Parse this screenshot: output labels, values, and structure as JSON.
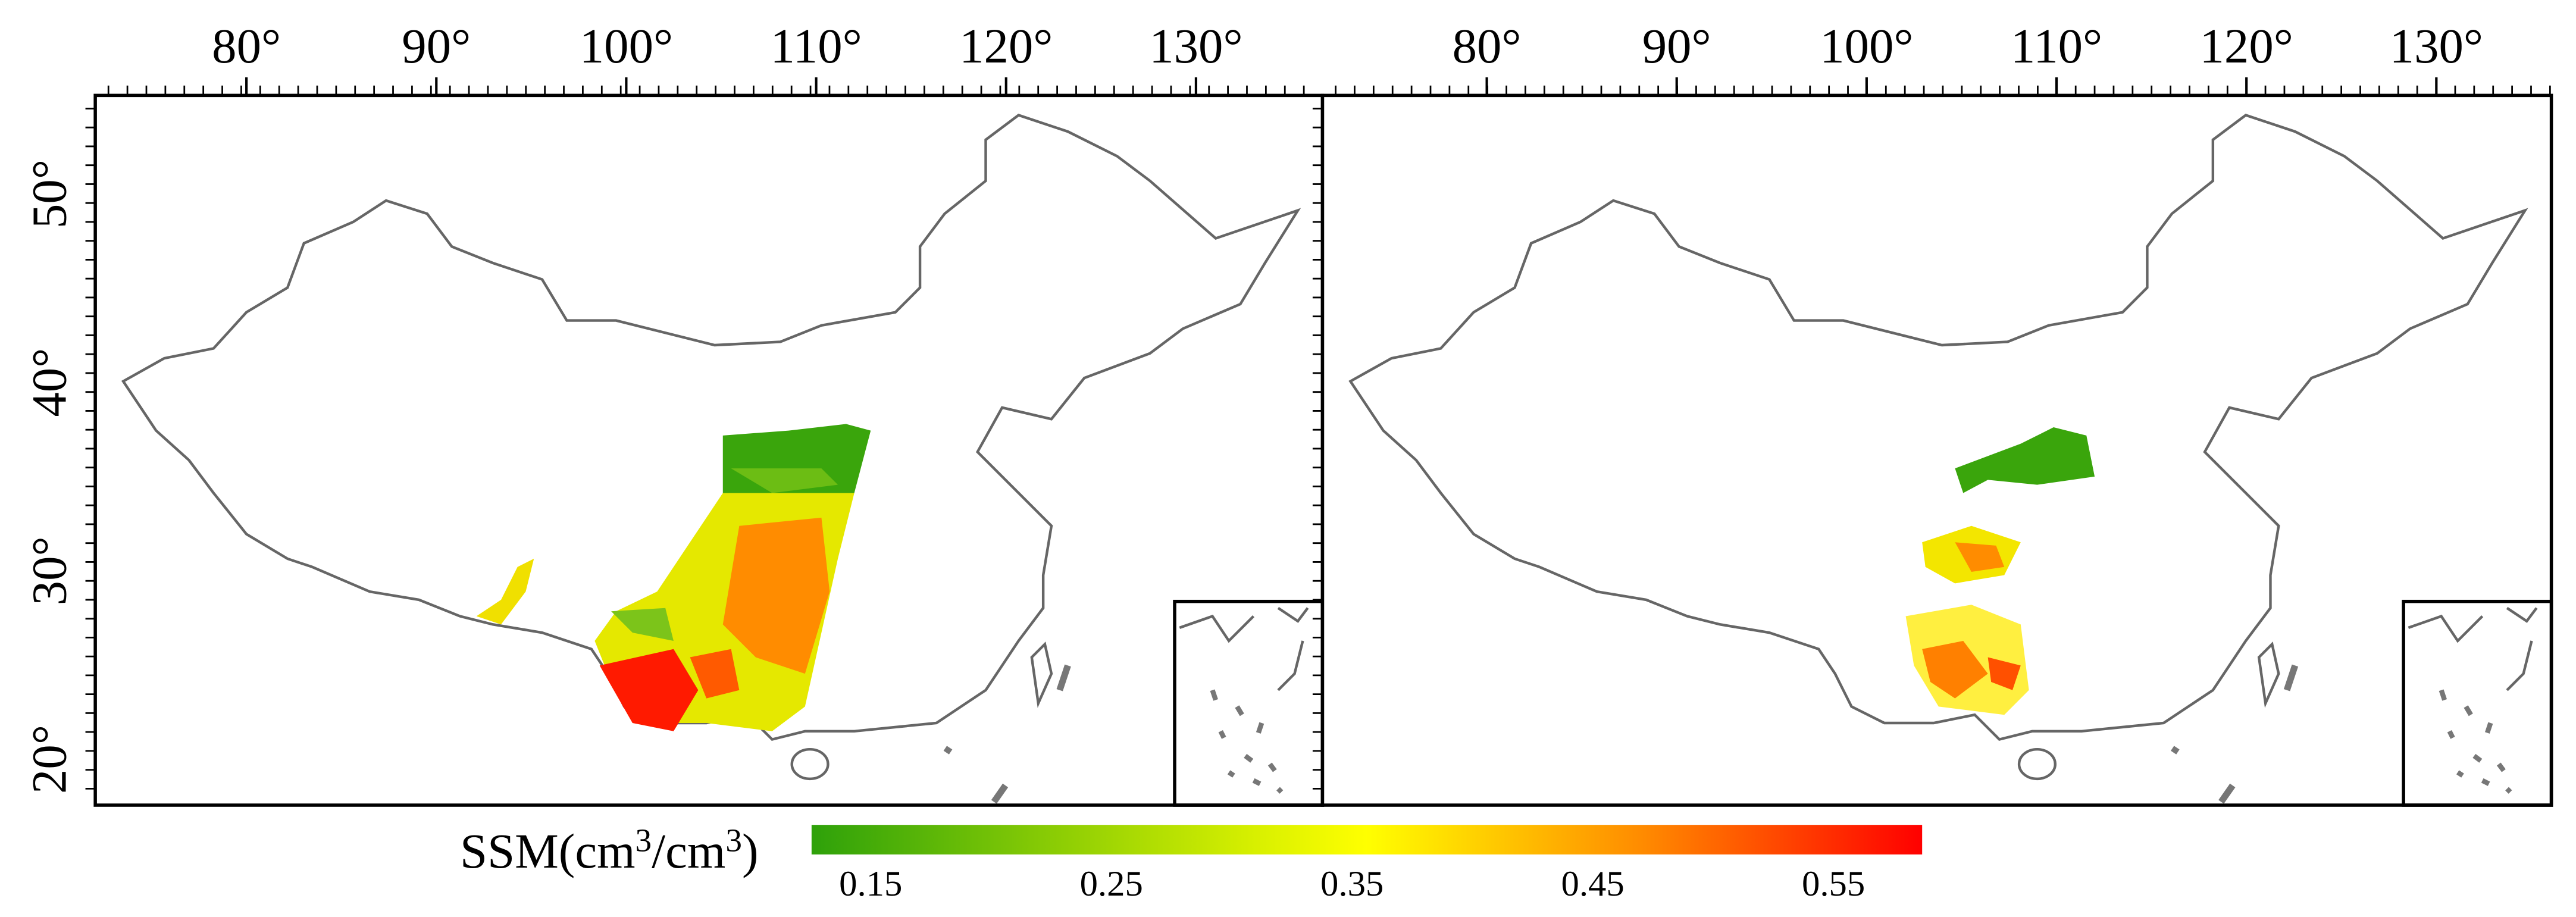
{
  "panels": [
    {
      "lon_labels": [
        "80°",
        "90°",
        "100°",
        "110°",
        "120°",
        "130°"
      ],
      "lat_labels": [
        "50°",
        "40°",
        "30°",
        "20°"
      ]
    },
    {
      "lon_labels": [
        "80°",
        "90°",
        "100°",
        "110°",
        "120°",
        "130°"
      ]
    }
  ],
  "colorbar": {
    "label": "SSM(cm",
    "sup1": "3",
    "mid": "/cm",
    "sup2": "3",
    "end": ")",
    "ticks": [
      0.15,
      0.25,
      0.35,
      0.45,
      0.55
    ]
  }
}
